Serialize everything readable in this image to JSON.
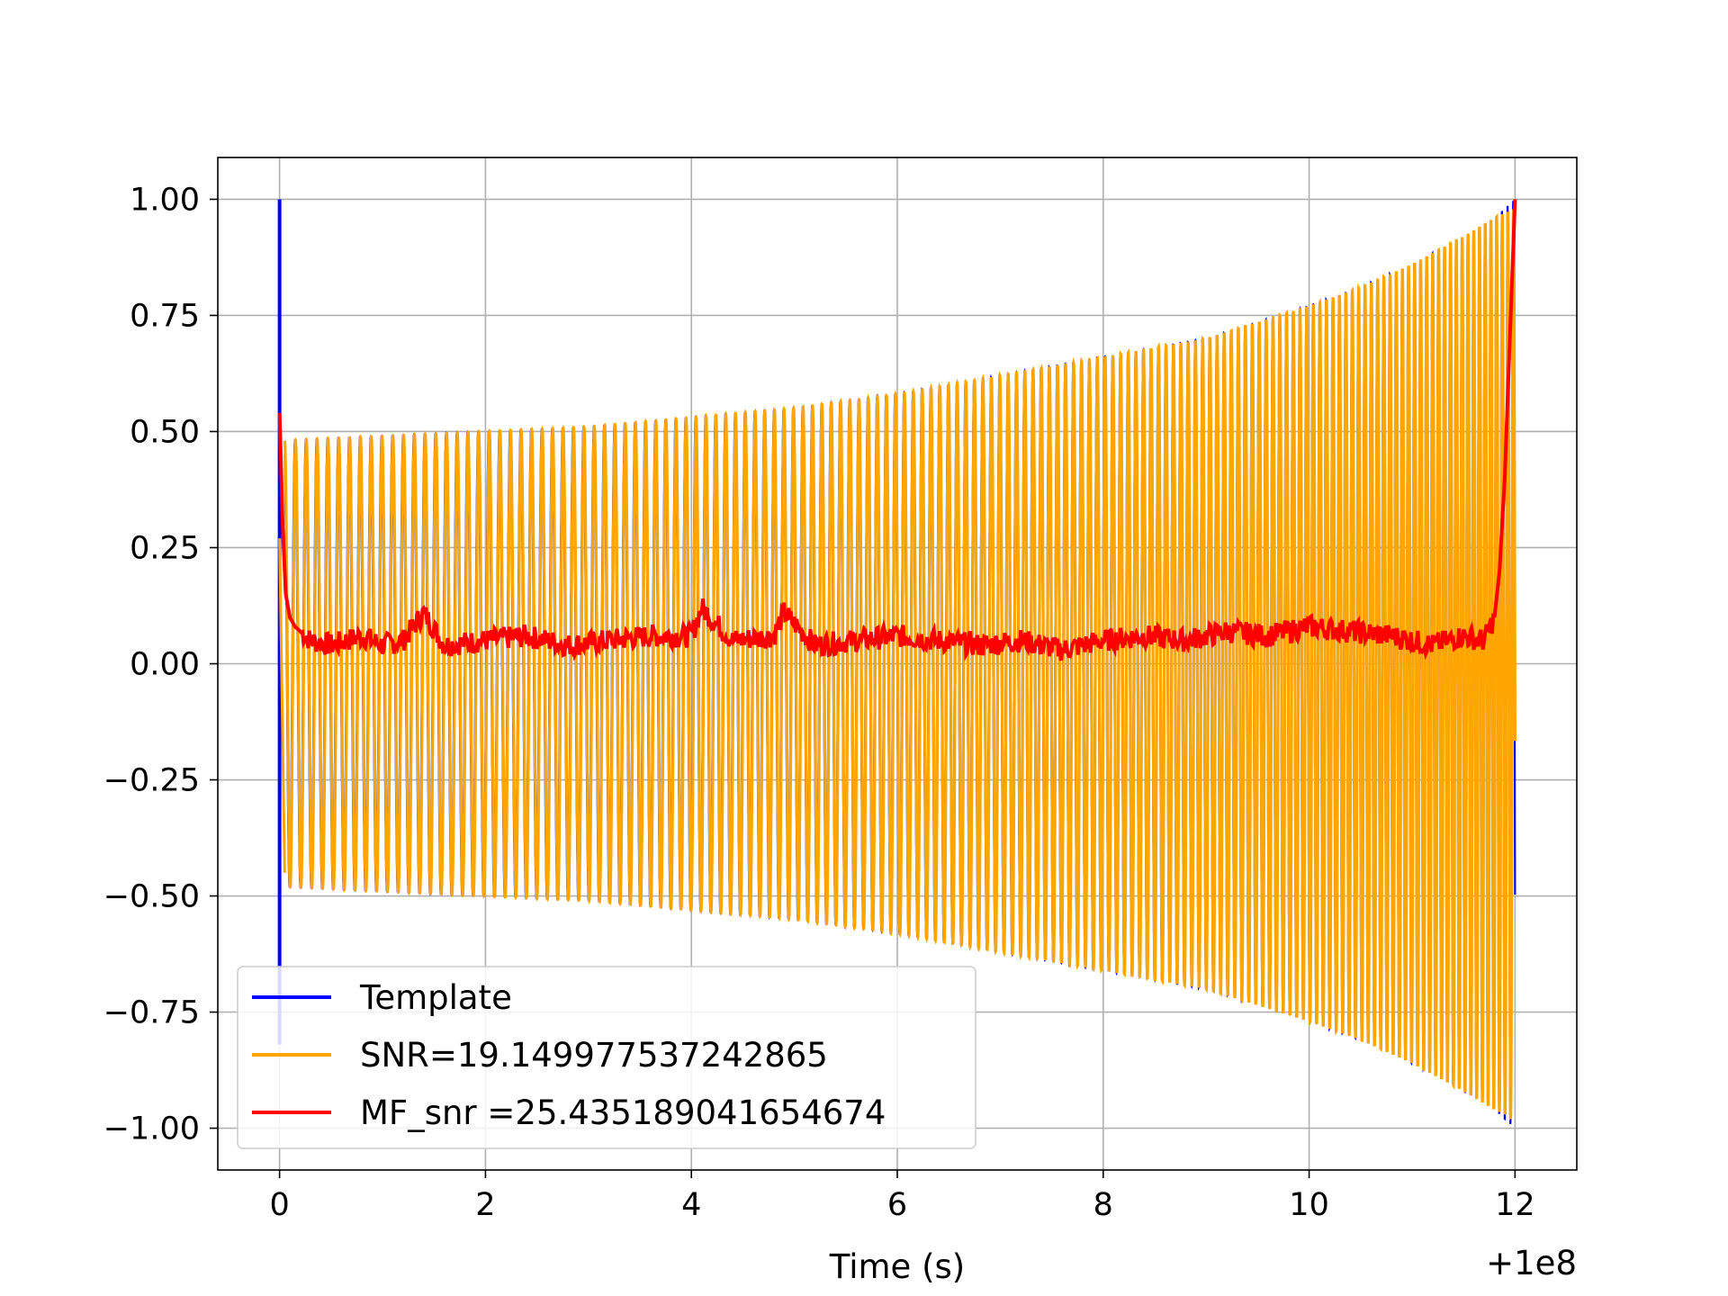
{
  "chart_data": {
    "type": "line",
    "title": "",
    "xlabel": "Time (s)",
    "ylabel": "",
    "x_offset_label": "+1e8",
    "xlim": [
      -0.6,
      12.6
    ],
    "ylim": [
      -1.09,
      1.09
    ],
    "x_ticks": [
      0,
      2,
      4,
      6,
      8,
      10,
      12
    ],
    "x_tick_labels": [
      "0",
      "2",
      "4",
      "6",
      "8",
      "10",
      "12"
    ],
    "y_ticks": [
      1.0,
      0.75,
      0.5,
      0.25,
      0.0,
      -0.25,
      -0.5,
      -0.75,
      -1.0
    ],
    "y_tick_labels": [
      "1.00",
      "0.75",
      "0.50",
      "0.25",
      "0.00",
      "−0.25",
      "−0.50",
      "−0.75",
      "−1.00"
    ],
    "grid": true,
    "legend_position": "lower-left",
    "series": [
      {
        "name": "Template",
        "color": "#0000ff",
        "envelope_x": [
          0.05,
          1,
          2,
          3,
          4,
          5,
          6,
          7,
          8,
          9,
          10,
          10.5,
          11,
          11.5,
          11.8,
          12.0
        ],
        "envelope_y": [
          0.48,
          0.49,
          0.5,
          0.51,
          0.53,
          0.55,
          0.58,
          0.62,
          0.66,
          0.7,
          0.77,
          0.81,
          0.86,
          0.92,
          0.96,
          1.0
        ],
        "spike": {
          "x": 0.0,
          "y_max": 1.0,
          "y_min": -0.82
        }
      },
      {
        "name": "SNR=19.149977537242865",
        "color": "#ffa500",
        "envelope_x": [
          0.05,
          1,
          2,
          3,
          4,
          5,
          6,
          7,
          8,
          9,
          10,
          10.5,
          11,
          11.5,
          11.8,
          12.0
        ],
        "envelope_y": [
          0.48,
          0.49,
          0.5,
          0.51,
          0.53,
          0.55,
          0.58,
          0.62,
          0.66,
          0.7,
          0.77,
          0.81,
          0.86,
          0.92,
          0.96,
          0.98
        ]
      },
      {
        "name": "MF_snr =25.435189041654674",
        "color": "#ff0000",
        "x": [
          0.0,
          0.03,
          0.06,
          0.1,
          0.15,
          0.2,
          0.3,
          0.5,
          0.8,
          1.0,
          1.2,
          1.4,
          1.6,
          2.0,
          2.4,
          2.8,
          3.2,
          3.6,
          4.0,
          4.1,
          4.4,
          4.8,
          4.9,
          5.2,
          5.6,
          6.0,
          6.4,
          6.8,
          7.2,
          7.6,
          8.0,
          8.4,
          8.8,
          9.2,
          9.6,
          10.0,
          10.4,
          10.8,
          11.0,
          11.2,
          11.5,
          11.7,
          11.8,
          11.85,
          11.9,
          11.95,
          12.0
        ],
        "y": [
          0.54,
          0.3,
          0.15,
          0.1,
          0.08,
          0.07,
          0.05,
          0.04,
          0.06,
          0.04,
          0.05,
          0.11,
          0.04,
          0.05,
          0.06,
          0.04,
          0.05,
          0.06,
          0.06,
          0.12,
          0.05,
          0.06,
          0.11,
          0.04,
          0.05,
          0.06,
          0.05,
          0.04,
          0.05,
          0.03,
          0.05,
          0.06,
          0.05,
          0.07,
          0.06,
          0.08,
          0.07,
          0.06,
          0.05,
          0.04,
          0.06,
          0.05,
          0.1,
          0.2,
          0.4,
          0.7,
          1.0
        ]
      }
    ]
  }
}
